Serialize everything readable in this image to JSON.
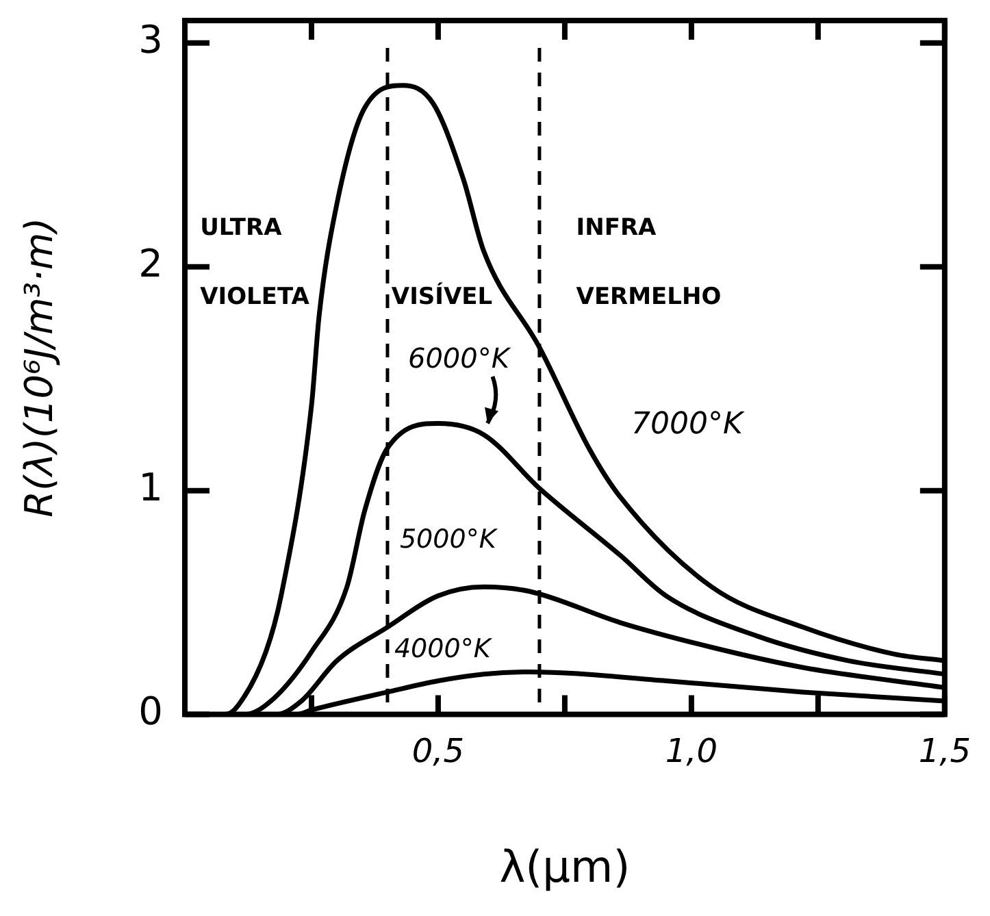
{
  "chart_data": {
    "type": "line",
    "xlabel": "λ(μm)",
    "ylabel": "R(λ)(10⁶J/m³·m)",
    "xlim": [
      0,
      1.5
    ],
    "xticks": [
      {
        "value": 0.25,
        "label": null
      },
      {
        "value": 0.5,
        "label": "0,5"
      },
      {
        "value": 0.75,
        "label": null
      },
      {
        "value": 1.0,
        "label": "1,0"
      },
      {
        "value": 1.25,
        "label": null
      },
      {
        "value": 1.5,
        "label": "1,5"
      }
    ],
    "ylim": [
      0,
      3.1
    ],
    "yticks": [
      0,
      1,
      2,
      3
    ],
    "grid": false,
    "legend": false,
    "marker": "none",
    "line_style": "solid",
    "series": [
      {
        "name": "7000°K",
        "color": "#000000",
        "x": [
          0,
          0.08,
          0.105,
          0.16,
          0.19,
          0.25,
          0.265,
          0.3,
          0.355,
          0.43,
          0.49,
          0.55,
          0.59,
          0.7,
          0.8,
          0.86,
          1.04,
          1.22,
          1.4,
          1.5
        ],
        "values": [
          0,
          0,
          0.04,
          0.28,
          0.53,
          1.38,
          1.78,
          2.28,
          2.71,
          2.81,
          2.73,
          2.39,
          2.07,
          1.64,
          1.18,
          0.97,
          0.57,
          0.39,
          0.27,
          0.24
        ]
      },
      {
        "name": "6000°K",
        "color": "#000000",
        "x": [
          0,
          0.12,
          0.17,
          0.25,
          0.32,
          0.355,
          0.4,
          0.5,
          0.59,
          0.7,
          0.86,
          0.95,
          1.13,
          1.31,
          1.5
        ],
        "values": [
          0,
          0,
          0.06,
          0.28,
          0.57,
          0.91,
          1.19,
          1.3,
          1.25,
          1.01,
          0.71,
          0.53,
          0.35,
          0.24,
          0.18
        ]
      },
      {
        "name": "5000°K",
        "color": "#000000",
        "x": [
          0,
          0.18,
          0.23,
          0.3,
          0.4,
          0.5,
          0.59,
          0.68,
          0.86,
          1.04,
          1.22,
          1.5
        ],
        "values": [
          0,
          0,
          0.06,
          0.24,
          0.39,
          0.53,
          0.57,
          0.55,
          0.41,
          0.3,
          0.21,
          0.12
        ]
      },
      {
        "name": "4000°K",
        "color": "#000000",
        "x": [
          0,
          0.22,
          0.25,
          0.4,
          0.5,
          0.59,
          0.68,
          0.95,
          1.22,
          1.5
        ],
        "values": [
          0,
          0,
          0.02,
          0.1,
          0.15,
          0.18,
          0.19,
          0.15,
          0.1,
          0.06
        ]
      }
    ],
    "ref_lines": [
      {
        "axis": "x",
        "value": 0.4,
        "color": "#000000",
        "line_style": "dashed"
      },
      {
        "axis": "x",
        "value": 0.7,
        "color": "#000000",
        "line_style": "dashed"
      }
    ],
    "annotations": [
      "ULTRA VIOLETA",
      "VISÍVEL",
      "INFRA VERMELHO"
    ]
  }
}
